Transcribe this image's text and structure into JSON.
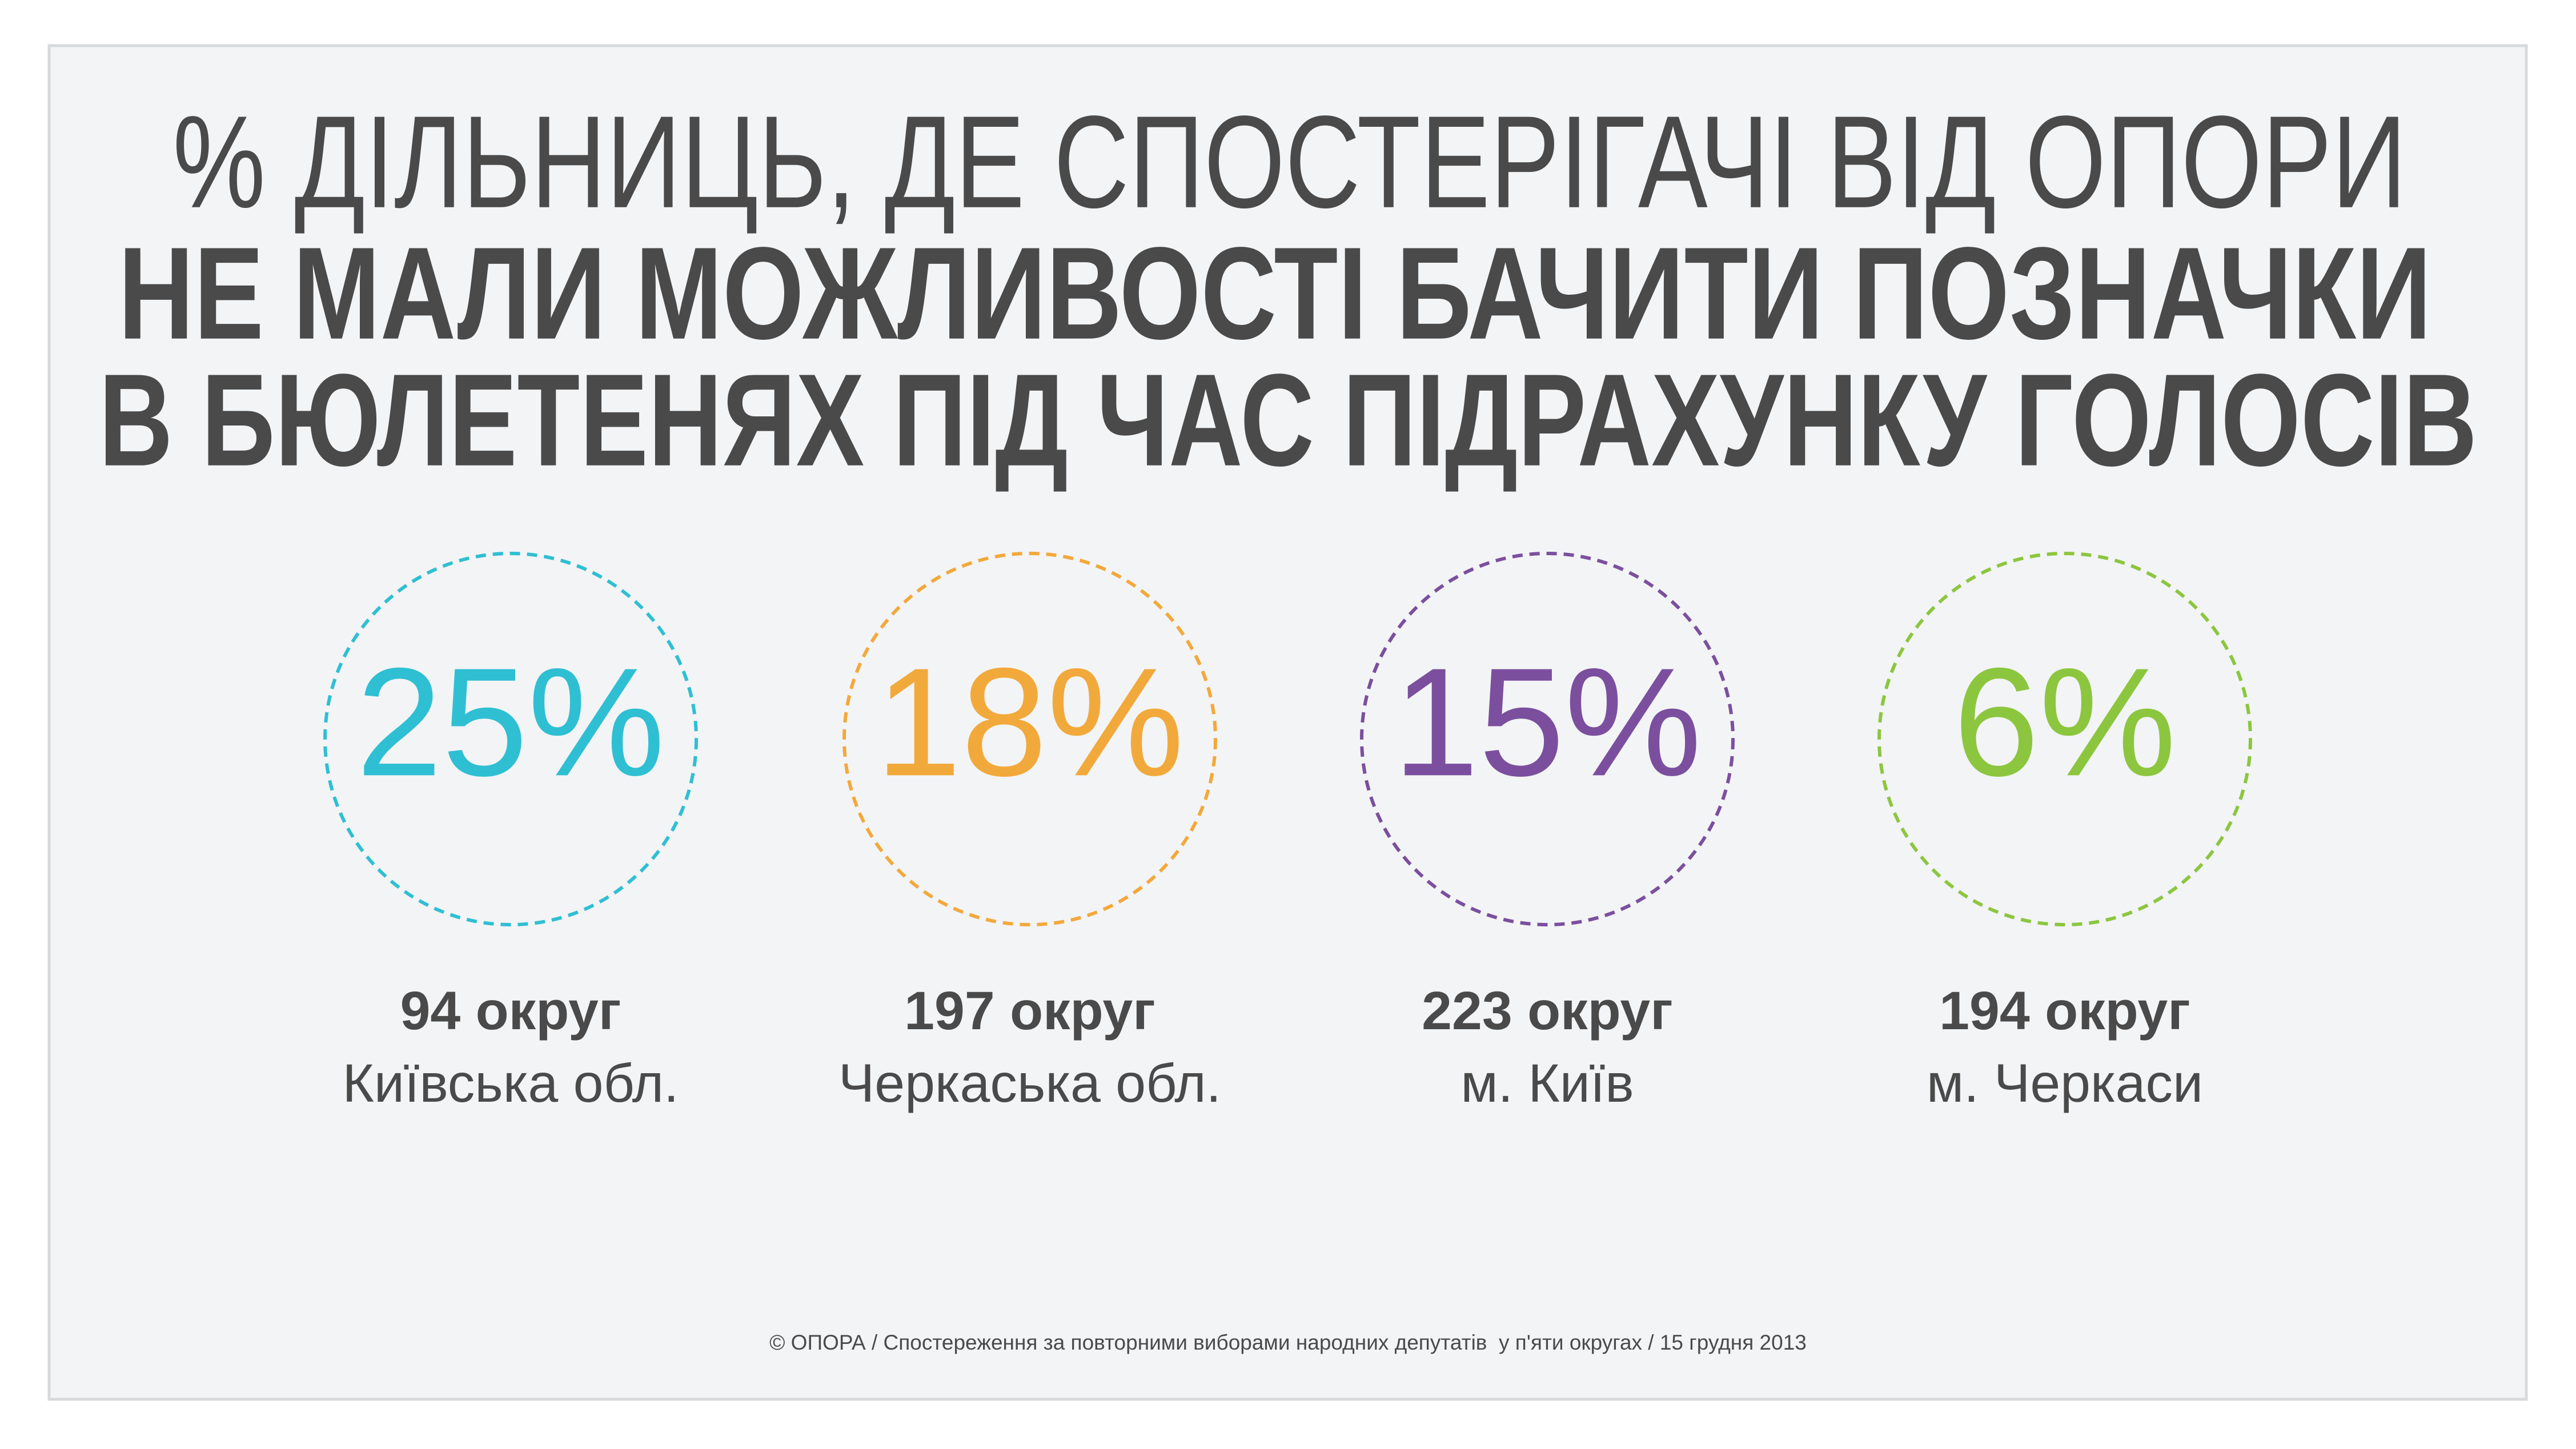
{
  "chart_data": {
    "type": "stat-circles",
    "title_lines": [
      "% ДІЛЬНИЦЬ, ДЕ СПОСТЕРІГАЧІ ВІД ОПОРИ",
      "НЕ МАЛИ МОЖЛИВОСТІ БАЧИТИ ПОЗНАЧКИ",
      "В БЮЛЕТЕНЯХ ПІД ЧАС ПІДРАХУНКУ ГОЛОСІВ"
    ],
    "categories": [
      "94 округ",
      "197 округ",
      "223 округ",
      "194 округ"
    ],
    "regions": [
      "Київська обл.",
      "Черкаська обл.",
      "м. Київ",
      "м. Черкаси"
    ],
    "values": [
      25,
      18,
      15,
      6
    ],
    "value_labels": [
      "25%",
      "18%",
      "15%",
      "6%"
    ],
    "colors": [
      "#2fbfd3",
      "#f2a93b",
      "#7b4f9e",
      "#8cc63f"
    ],
    "footer": "© ОПОРА / Спостереження за повторними виборами народних депутатів  у п'яти округах / 15 грудня 2013"
  }
}
